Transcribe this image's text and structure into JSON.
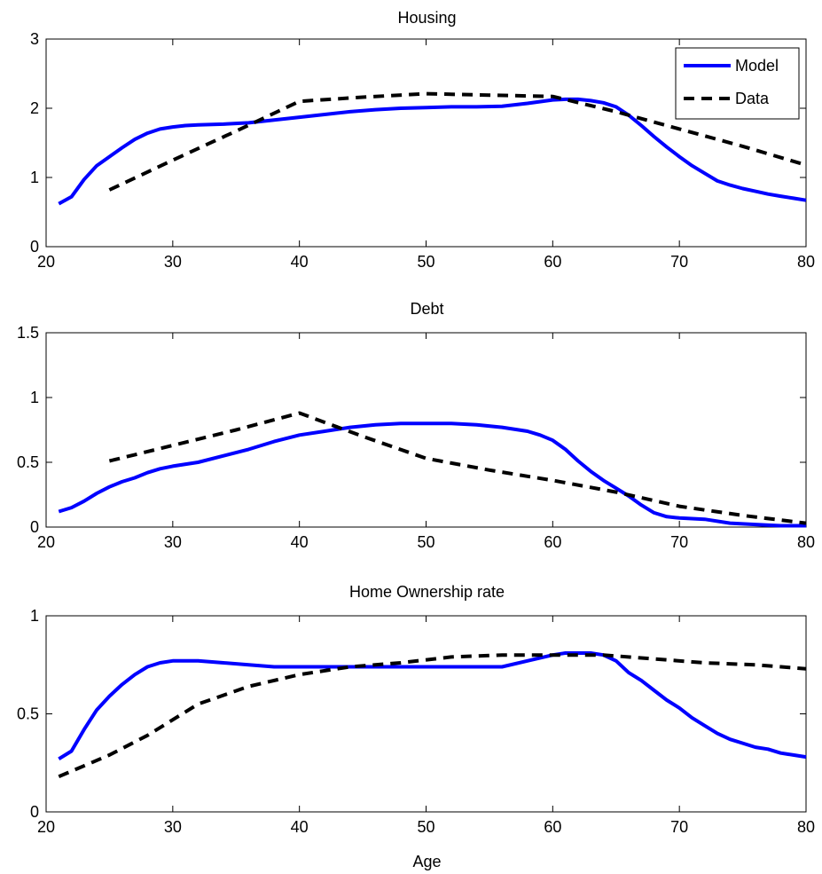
{
  "chart_data": [
    {
      "type": "line",
      "title": "Housing",
      "xlabel": "",
      "ylabel": "",
      "xlim": [
        20,
        80
      ],
      "ylim": [
        0,
        3
      ],
      "xticks": [
        "20",
        "30",
        "40",
        "50",
        "60",
        "70",
        "80"
      ],
      "yticks": [
        "0",
        "1",
        "2",
        "3"
      ],
      "grid": false,
      "legend": {
        "position": "top-right",
        "entries": [
          "Model",
          "Data"
        ]
      },
      "series": [
        {
          "name": "Model",
          "color": "#0000ff",
          "style": "solid",
          "x": [
            21,
            22,
            23,
            24,
            25,
            26,
            27,
            28,
            29,
            30,
            31,
            32,
            34,
            36,
            38,
            40,
            42,
            44,
            46,
            48,
            50,
            52,
            54,
            56,
            58,
            60,
            61,
            62,
            63,
            64,
            65,
            66,
            67,
            68,
            69,
            70,
            71,
            72,
            73,
            74,
            75,
            76,
            77,
            78,
            79,
            80
          ],
          "y": [
            0.62,
            0.72,
            0.97,
            1.17,
            1.3,
            1.43,
            1.55,
            1.64,
            1.7,
            1.73,
            1.75,
            1.76,
            1.77,
            1.79,
            1.83,
            1.87,
            1.91,
            1.95,
            1.98,
            2.0,
            2.01,
            2.02,
            2.02,
            2.03,
            2.07,
            2.12,
            2.13,
            2.13,
            2.11,
            2.08,
            2.02,
            1.9,
            1.75,
            1.59,
            1.44,
            1.3,
            1.17,
            1.06,
            0.95,
            0.89,
            0.84,
            0.8,
            0.76,
            0.73,
            0.7,
            0.67
          ]
        },
        {
          "name": "Data",
          "color": "#000000",
          "style": "dashed",
          "x": [
            25,
            30,
            35,
            40,
            45,
            50,
            55,
            60,
            65,
            70,
            75,
            80
          ],
          "y": [
            0.82,
            1.25,
            1.67,
            2.1,
            2.16,
            2.21,
            2.19,
            2.17,
            1.95,
            1.7,
            1.45,
            1.18
          ]
        }
      ]
    },
    {
      "type": "line",
      "title": "Debt",
      "xlabel": "",
      "ylabel": "",
      "xlim": [
        20,
        80
      ],
      "ylim": [
        0,
        1.5
      ],
      "xticks": [
        "20",
        "30",
        "40",
        "50",
        "60",
        "70",
        "80"
      ],
      "yticks": [
        "0",
        "0.5",
        "1",
        "1.5"
      ],
      "grid": false,
      "series": [
        {
          "name": "Model",
          "color": "#0000ff",
          "style": "solid",
          "x": [
            21,
            22,
            23,
            24,
            25,
            26,
            27,
            28,
            29,
            30,
            32,
            34,
            36,
            38,
            40,
            42,
            44,
            46,
            48,
            50,
            52,
            54,
            56,
            58,
            59,
            60,
            61,
            62,
            63,
            64,
            65,
            66,
            67,
            68,
            69,
            70,
            72,
            74,
            76,
            78,
            80
          ],
          "y": [
            0.12,
            0.15,
            0.2,
            0.26,
            0.31,
            0.35,
            0.38,
            0.42,
            0.45,
            0.47,
            0.5,
            0.55,
            0.6,
            0.66,
            0.71,
            0.74,
            0.77,
            0.79,
            0.8,
            0.8,
            0.8,
            0.79,
            0.77,
            0.74,
            0.71,
            0.67,
            0.6,
            0.51,
            0.43,
            0.36,
            0.3,
            0.24,
            0.17,
            0.11,
            0.08,
            0.07,
            0.06,
            0.03,
            0.02,
            0.01,
            0.01
          ]
        },
        {
          "name": "Data",
          "color": "#000000",
          "style": "dashed",
          "x": [
            25,
            30,
            35,
            40,
            45,
            50,
            55,
            60,
            65,
            70,
            75,
            80
          ],
          "y": [
            0.51,
            0.63,
            0.75,
            0.88,
            0.7,
            0.53,
            0.44,
            0.36,
            0.27,
            0.16,
            0.09,
            0.03
          ]
        }
      ]
    },
    {
      "type": "line",
      "title": "Home Ownership rate",
      "xlabel": "Age",
      "ylabel": "",
      "xlim": [
        20,
        80
      ],
      "ylim": [
        0,
        1
      ],
      "xticks": [
        "20",
        "30",
        "40",
        "50",
        "60",
        "70",
        "80"
      ],
      "yticks": [
        "0",
        "0.5",
        "1"
      ],
      "grid": false,
      "series": [
        {
          "name": "Model",
          "color": "#0000ff",
          "style": "solid",
          "x": [
            21,
            22,
            23,
            24,
            25,
            26,
            27,
            28,
            29,
            30,
            31,
            32,
            34,
            36,
            38,
            40,
            42,
            44,
            46,
            48,
            50,
            52,
            54,
            56,
            58,
            60,
            61,
            62,
            63,
            64,
            65,
            66,
            67,
            68,
            69,
            70,
            71,
            72,
            73,
            74,
            75,
            76,
            77,
            78,
            79,
            80
          ],
          "y": [
            0.27,
            0.31,
            0.42,
            0.52,
            0.59,
            0.65,
            0.7,
            0.74,
            0.76,
            0.77,
            0.77,
            0.77,
            0.76,
            0.75,
            0.74,
            0.74,
            0.74,
            0.74,
            0.74,
            0.74,
            0.74,
            0.74,
            0.74,
            0.74,
            0.77,
            0.8,
            0.81,
            0.81,
            0.81,
            0.8,
            0.77,
            0.71,
            0.67,
            0.62,
            0.57,
            0.53,
            0.48,
            0.44,
            0.4,
            0.37,
            0.35,
            0.33,
            0.32,
            0.3,
            0.29,
            0.28
          ]
        },
        {
          "name": "Data",
          "color": "#000000",
          "style": "dashed",
          "x": [
            21,
            25,
            28,
            32,
            36,
            40,
            44,
            48,
            52,
            56,
            60,
            64,
            68,
            72,
            76,
            80
          ],
          "y": [
            0.18,
            0.29,
            0.39,
            0.55,
            0.64,
            0.7,
            0.74,
            0.76,
            0.79,
            0.8,
            0.8,
            0.8,
            0.78,
            0.76,
            0.75,
            0.73
          ]
        }
      ]
    }
  ]
}
